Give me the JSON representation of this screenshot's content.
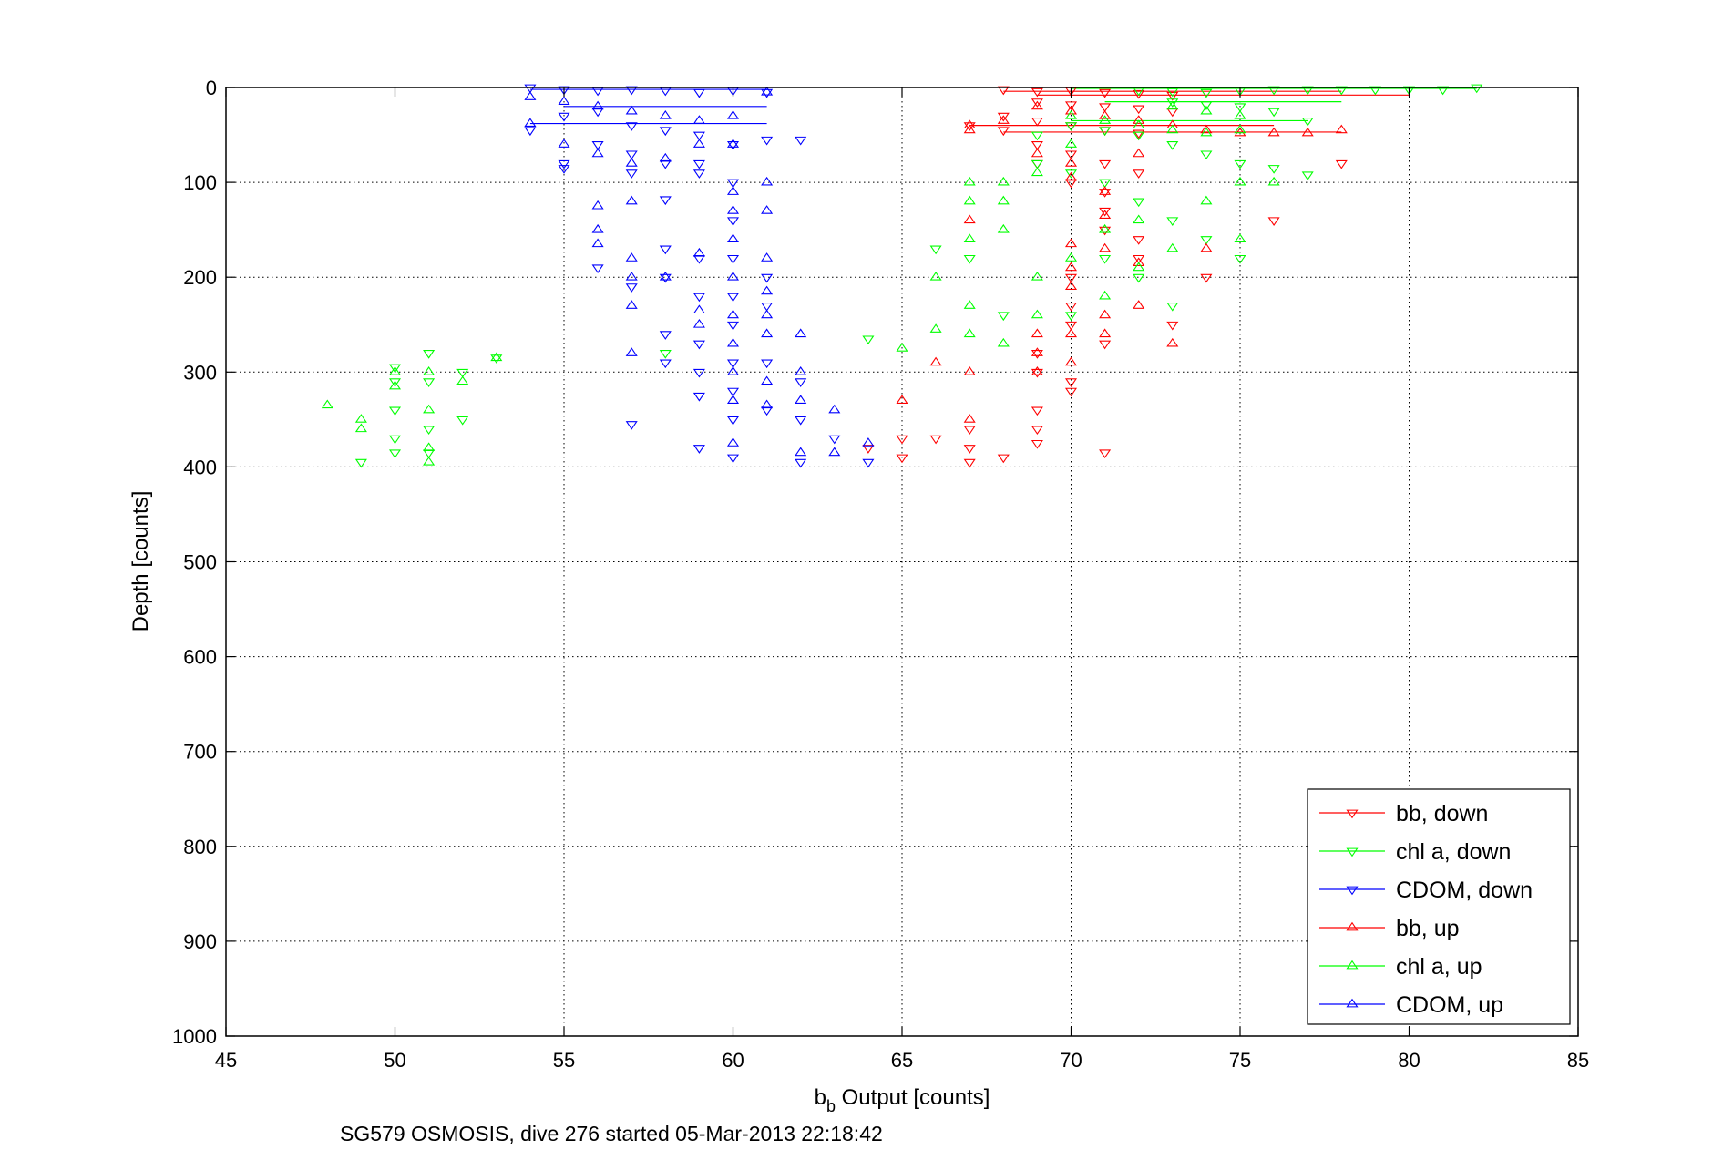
{
  "chart_data": {
    "type": "scatter",
    "title": "",
    "xlabel_main": "b",
    "xlabel_sub": "b",
    "xlabel_rest": " Output [counts]",
    "ylabel": "Depth [counts]",
    "caption": "SG579 OSMOSIS, dive 276 started 05-Mar-2013 22:18:42",
    "xlim": [
      45,
      85
    ],
    "ylim": [
      0,
      1000
    ],
    "y_reversed": true,
    "xticks": [
      45,
      50,
      55,
      60,
      65,
      70,
      75,
      80,
      85
    ],
    "yticks": [
      0,
      100,
      200,
      300,
      400,
      500,
      600,
      700,
      800,
      900,
      1000
    ],
    "xtick_labels": [
      "45",
      "50",
      "55",
      "60",
      "65",
      "70",
      "75",
      "80",
      "85"
    ],
    "ytick_labels": [
      "0",
      "100",
      "200",
      "300",
      "400",
      "500",
      "600",
      "700",
      "800",
      "900",
      "1000"
    ],
    "grid": true,
    "legend_position": "bottom-right",
    "series": [
      {
        "name": "bb, down",
        "color": "#ff0000",
        "marker": "triangle-down",
        "points": [
          [
            68,
            2
          ],
          [
            69,
            4
          ],
          [
            70,
            3
          ],
          [
            71,
            5
          ],
          [
            72,
            6
          ],
          [
            73,
            8
          ],
          [
            69,
            15
          ],
          [
            70,
            18
          ],
          [
            71,
            20
          ],
          [
            72,
            22
          ],
          [
            73,
            25
          ],
          [
            68,
            30
          ],
          [
            69,
            35
          ],
          [
            70,
            40
          ],
          [
            71,
            45
          ],
          [
            72,
            48
          ],
          [
            67,
            40
          ],
          [
            68,
            45
          ],
          [
            69,
            60
          ],
          [
            70,
            70
          ],
          [
            71,
            80
          ],
          [
            72,
            90
          ],
          [
            69,
            80
          ],
          [
            70,
            100
          ],
          [
            71,
            110
          ],
          [
            71,
            130
          ],
          [
            71,
            150
          ],
          [
            72,
            160
          ],
          [
            72,
            180
          ],
          [
            70,
            200
          ],
          [
            70,
            230
          ],
          [
            70,
            250
          ],
          [
            71,
            270
          ],
          [
            69,
            280
          ],
          [
            69,
            300
          ],
          [
            70,
            310
          ],
          [
            70,
            320
          ],
          [
            69,
            340
          ],
          [
            69,
            360
          ],
          [
            69,
            375
          ],
          [
            68,
            390
          ],
          [
            67,
            395
          ],
          [
            65,
            390
          ],
          [
            65,
            370
          ],
          [
            66,
            370
          ],
          [
            67,
            360
          ],
          [
            67,
            380
          ],
          [
            71,
            385
          ],
          [
            74,
            200
          ],
          [
            73,
            250
          ],
          [
            76,
            140
          ],
          [
            78,
            80
          ],
          [
            64,
            380
          ]
        ]
      },
      {
        "name": "chl a, down",
        "color": "#00ff00",
        "marker": "triangle-down",
        "points": [
          [
            72,
            3
          ],
          [
            73,
            4
          ],
          [
            74,
            5
          ],
          [
            75,
            3
          ],
          [
            76,
            2
          ],
          [
            77,
            2
          ],
          [
            78,
            2
          ],
          [
            79,
            2
          ],
          [
            80,
            2
          ],
          [
            81,
            2
          ],
          [
            82,
            0
          ],
          [
            73,
            15
          ],
          [
            74,
            18
          ],
          [
            75,
            20
          ],
          [
            76,
            25
          ],
          [
            77,
            35
          ],
          [
            70,
            40
          ],
          [
            71,
            45
          ],
          [
            72,
            50
          ],
          [
            73,
            60
          ],
          [
            74,
            70
          ],
          [
            75,
            80
          ],
          [
            76,
            85
          ],
          [
            77,
            92
          ],
          [
            69,
            50
          ],
          [
            69,
            80
          ],
          [
            70,
            90
          ],
          [
            71,
            100
          ],
          [
            72,
            120
          ],
          [
            73,
            140
          ],
          [
            74,
            160
          ],
          [
            75,
            180
          ],
          [
            71,
            180
          ],
          [
            72,
            200
          ],
          [
            73,
            230
          ],
          [
            70,
            240
          ],
          [
            68,
            240
          ],
          [
            66,
            170
          ],
          [
            67,
            180
          ],
          [
            64,
            265
          ],
          [
            49,
            395
          ],
          [
            50,
            385
          ],
          [
            50,
            370
          ],
          [
            50,
            340
          ],
          [
            50,
            310
          ],
          [
            50,
            295
          ],
          [
            51,
            280
          ],
          [
            51,
            310
          ],
          [
            51,
            360
          ],
          [
            51,
            385
          ],
          [
            52,
            300
          ],
          [
            52,
            350
          ],
          [
            53,
            285
          ],
          [
            58,
            280
          ]
        ]
      },
      {
        "name": "CDOM, down",
        "color": "#0000ff",
        "marker": "triangle-down",
        "points": [
          [
            54,
            0
          ],
          [
            55,
            2
          ],
          [
            56,
            3
          ],
          [
            57,
            2
          ],
          [
            58,
            3
          ],
          [
            59,
            5
          ],
          [
            60,
            3
          ],
          [
            61,
            5
          ],
          [
            55,
            30
          ],
          [
            56,
            25
          ],
          [
            57,
            40
          ],
          [
            58,
            45
          ],
          [
            59,
            50
          ],
          [
            60,
            60
          ],
          [
            61,
            55
          ],
          [
            62,
            55
          ],
          [
            54,
            45
          ],
          [
            56,
            60
          ],
          [
            57,
            70
          ],
          [
            58,
            80
          ],
          [
            59,
            90
          ],
          [
            60,
            100
          ],
          [
            57,
            90
          ],
          [
            58,
            118
          ],
          [
            59,
            80
          ],
          [
            55,
            80
          ],
          [
            55,
            85
          ],
          [
            56,
            190
          ],
          [
            57,
            210
          ],
          [
            58,
            200
          ],
          [
            58,
            170
          ],
          [
            59,
            180
          ],
          [
            59,
            220
          ],
          [
            59,
            270
          ],
          [
            59,
            300
          ],
          [
            59,
            325
          ],
          [
            60,
            140
          ],
          [
            60,
            180
          ],
          [
            60,
            220
          ],
          [
            60,
            250
          ],
          [
            60,
            290
          ],
          [
            60,
            320
          ],
          [
            60,
            350
          ],
          [
            60,
            390
          ],
          [
            61,
            200
          ],
          [
            61,
            230
          ],
          [
            61,
            290
          ],
          [
            61,
            340
          ],
          [
            62,
            310
          ],
          [
            62,
            350
          ],
          [
            62,
            395
          ],
          [
            63,
            370
          ],
          [
            64,
            395
          ],
          [
            57,
            355
          ],
          [
            58,
            260
          ],
          [
            58,
            290
          ],
          [
            59,
            380
          ]
        ]
      },
      {
        "name": "bb, up",
        "color": "#ff0000",
        "marker": "triangle-up",
        "points": [
          [
            67,
            40
          ],
          [
            67,
            45
          ],
          [
            68,
            35
          ],
          [
            69,
            20
          ],
          [
            70,
            25
          ],
          [
            71,
            30
          ],
          [
            72,
            35
          ],
          [
            73,
            40
          ],
          [
            74,
            45
          ],
          [
            75,
            48
          ],
          [
            76,
            48
          ],
          [
            77,
            48
          ],
          [
            78,
            45
          ],
          [
            69,
            70
          ],
          [
            70,
            80
          ],
          [
            70,
            95
          ],
          [
            71,
            110
          ],
          [
            71,
            135
          ],
          [
            71,
            170
          ],
          [
            70,
            165
          ],
          [
            70,
            190
          ],
          [
            70,
            210
          ],
          [
            70,
            260
          ],
          [
            70,
            290
          ],
          [
            71,
            240
          ],
          [
            71,
            260
          ],
          [
            72,
            185
          ],
          [
            72,
            230
          ],
          [
            69,
            260
          ],
          [
            69,
            280
          ],
          [
            69,
            300
          ],
          [
            67,
            140
          ],
          [
            67,
            300
          ],
          [
            66,
            290
          ],
          [
            65,
            330
          ],
          [
            67,
            350
          ],
          [
            73,
            270
          ],
          [
            74,
            170
          ],
          [
            72,
            70
          ]
        ]
      },
      {
        "name": "chl a, up",
        "color": "#00ff00",
        "marker": "triangle-up",
        "points": [
          [
            70,
            30
          ],
          [
            71,
            35
          ],
          [
            72,
            40
          ],
          [
            73,
            45
          ],
          [
            74,
            48
          ],
          [
            75,
            45
          ],
          [
            73,
            20
          ],
          [
            74,
            25
          ],
          [
            75,
            30
          ],
          [
            70,
            60
          ],
          [
            69,
            90
          ],
          [
            68,
            100
          ],
          [
            67,
            100
          ],
          [
            68,
            120
          ],
          [
            68,
            150
          ],
          [
            67,
            120
          ],
          [
            67,
            160
          ],
          [
            66,
            200
          ],
          [
            66,
            255
          ],
          [
            67,
            230
          ],
          [
            67,
            260
          ],
          [
            68,
            270
          ],
          [
            69,
            240
          ],
          [
            69,
            200
          ],
          [
            70,
            180
          ],
          [
            71,
            150
          ],
          [
            71,
            220
          ],
          [
            72,
            190
          ],
          [
            72,
            140
          ],
          [
            73,
            170
          ],
          [
            74,
            120
          ],
          [
            75,
            160
          ],
          [
            76,
            100
          ],
          [
            75,
            100
          ],
          [
            48,
            335
          ],
          [
            49,
            350
          ],
          [
            49,
            360
          ],
          [
            50,
            315
          ],
          [
            50,
            300
          ],
          [
            51,
            300
          ],
          [
            51,
            340
          ],
          [
            51,
            380
          ],
          [
            51,
            395
          ],
          [
            52,
            310
          ],
          [
            53,
            285
          ],
          [
            65,
            275
          ]
        ]
      },
      {
        "name": "CDOM, up",
        "color": "#0000ff",
        "marker": "triangle-up",
        "points": [
          [
            54,
            10
          ],
          [
            55,
            15
          ],
          [
            56,
            20
          ],
          [
            57,
            25
          ],
          [
            58,
            30
          ],
          [
            59,
            35
          ],
          [
            60,
            30
          ],
          [
            61,
            5
          ],
          [
            54,
            38
          ],
          [
            55,
            60
          ],
          [
            56,
            70
          ],
          [
            57,
            80
          ],
          [
            58,
            75
          ],
          [
            59,
            60
          ],
          [
            60,
            60
          ],
          [
            57,
            120
          ],
          [
            56,
            125
          ],
          [
            56,
            150
          ],
          [
            56,
            165
          ],
          [
            57,
            180
          ],
          [
            57,
            200
          ],
          [
            57,
            230
          ],
          [
            57,
            280
          ],
          [
            58,
            200
          ],
          [
            59,
            175
          ],
          [
            59,
            235
          ],
          [
            59,
            250
          ],
          [
            60,
            110
          ],
          [
            60,
            130
          ],
          [
            60,
            160
          ],
          [
            60,
            200
          ],
          [
            60,
            240
          ],
          [
            60,
            270
          ],
          [
            60,
            300
          ],
          [
            60,
            330
          ],
          [
            60,
            375
          ],
          [
            61,
            100
          ],
          [
            61,
            130
          ],
          [
            61,
            180
          ],
          [
            61,
            215
          ],
          [
            61,
            240
          ],
          [
            61,
            260
          ],
          [
            61,
            310
          ],
          [
            61,
            335
          ],
          [
            62,
            260
          ],
          [
            62,
            300
          ],
          [
            62,
            330
          ],
          [
            62,
            385
          ],
          [
            63,
            340
          ],
          [
            63,
            385
          ],
          [
            64,
            375
          ]
        ]
      }
    ],
    "connecting_lines": [
      {
        "color": "#ff0000",
        "x": [
          68,
          78
        ],
        "y": 4
      },
      {
        "color": "#ff0000",
        "x": [
          69,
          80
        ],
        "y": 8
      },
      {
        "color": "#ff0000",
        "x": [
          67,
          76
        ],
        "y": 40
      },
      {
        "color": "#ff0000",
        "x": [
          68,
          78
        ],
        "y": 47
      },
      {
        "color": "#00ff00",
        "x": [
          70,
          82
        ],
        "y": 1
      },
      {
        "color": "#00ff00",
        "x": [
          71,
          78
        ],
        "y": 15
      },
      {
        "color": "#00ff00",
        "x": [
          70,
          77
        ],
        "y": 35
      },
      {
        "color": "#0000ff",
        "x": [
          54,
          61
        ],
        "y": 2
      },
      {
        "color": "#0000ff",
        "x": [
          55,
          61
        ],
        "y": 20
      },
      {
        "color": "#0000ff",
        "x": [
          54,
          61
        ],
        "y": 38
      }
    ]
  }
}
